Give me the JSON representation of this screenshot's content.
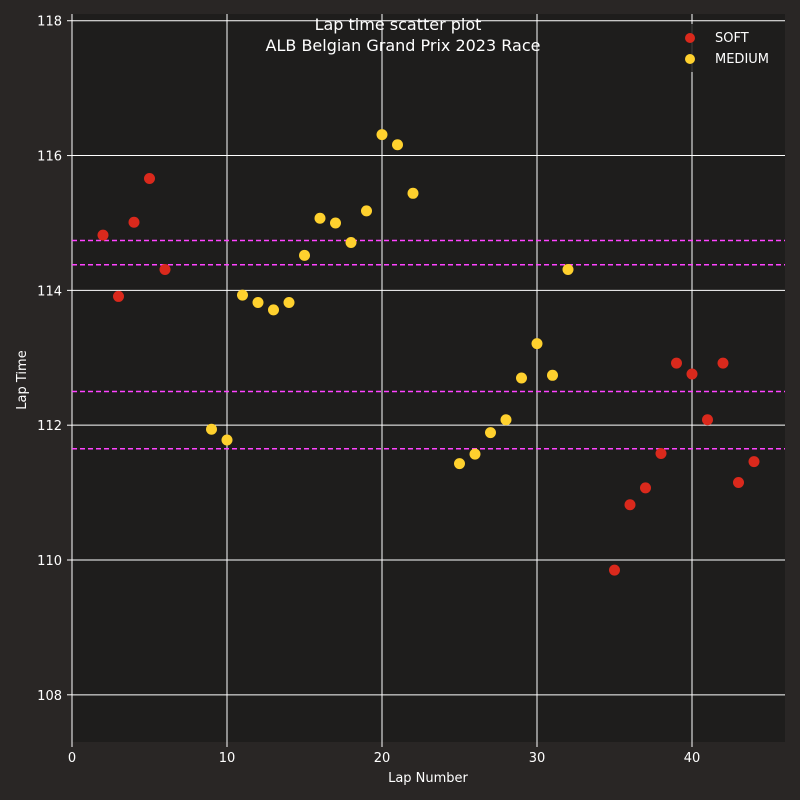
{
  "chart_data": {
    "type": "scatter",
    "title": "Lap time scatter plot",
    "subtitle": "ALB Belgian Grand Prix 2023 Race",
    "xlabel": "Lap Number",
    "ylabel": "Lap Time",
    "xlim": [
      0,
      46
    ],
    "ylim": [
      107.3,
      118.1
    ],
    "xticks": [
      0,
      10,
      20,
      30,
      40
    ],
    "yticks": [
      108,
      110,
      112,
      114,
      116,
      118
    ],
    "grid": true,
    "legend_position": "top-right",
    "background_color": "#1e1d1c",
    "figure_color": "#292625",
    "grid_color": "#ffffff",
    "series": [
      {
        "name": "SOFT",
        "color": "#da291c",
        "points": [
          {
            "x": 2,
            "y": 114.82
          },
          {
            "x": 3,
            "y": 113.91
          },
          {
            "x": 4,
            "y": 115.01
          },
          {
            "x": 5,
            "y": 115.66
          },
          {
            "x": 6,
            "y": 114.31
          },
          {
            "x": 35,
            "y": 109.85
          },
          {
            "x": 36,
            "y": 110.82
          },
          {
            "x": 37,
            "y": 111.07
          },
          {
            "x": 38,
            "y": 111.58
          },
          {
            "x": 39,
            "y": 112.92
          },
          {
            "x": 40,
            "y": 112.76
          },
          {
            "x": 41,
            "y": 112.08
          },
          {
            "x": 42,
            "y": 112.92
          },
          {
            "x": 43,
            "y": 111.15
          },
          {
            "x": 44,
            "y": 111.46
          }
        ]
      },
      {
        "name": "MEDIUM",
        "color": "#ffd12e",
        "points": [
          {
            "x": 9,
            "y": 111.94
          },
          {
            "x": 10,
            "y": 111.78
          },
          {
            "x": 11,
            "y": 113.93
          },
          {
            "x": 12,
            "y": 113.82
          },
          {
            "x": 13,
            "y": 113.71
          },
          {
            "x": 14,
            "y": 113.82
          },
          {
            "x": 15,
            "y": 114.52
          },
          {
            "x": 16,
            "y": 115.07
          },
          {
            "x": 17,
            "y": 115.0
          },
          {
            "x": 18,
            "y": 114.71
          },
          {
            "x": 19,
            "y": 115.18
          },
          {
            "x": 20,
            "y": 116.31
          },
          {
            "x": 21,
            "y": 116.16
          },
          {
            "x": 22,
            "y": 115.44
          },
          {
            "x": 25,
            "y": 111.43
          },
          {
            "x": 26,
            "y": 111.57
          },
          {
            "x": 27,
            "y": 111.89
          },
          {
            "x": 28,
            "y": 112.08
          },
          {
            "x": 29,
            "y": 112.7
          },
          {
            "x": 30,
            "y": 113.21
          },
          {
            "x": 31,
            "y": 112.74
          },
          {
            "x": 32,
            "y": 114.31
          }
        ]
      }
    ],
    "reference_lines": {
      "color": "#ff44ff",
      "style": "dashed",
      "y": [
        114.74,
        114.38,
        112.5,
        111.65
      ]
    }
  }
}
